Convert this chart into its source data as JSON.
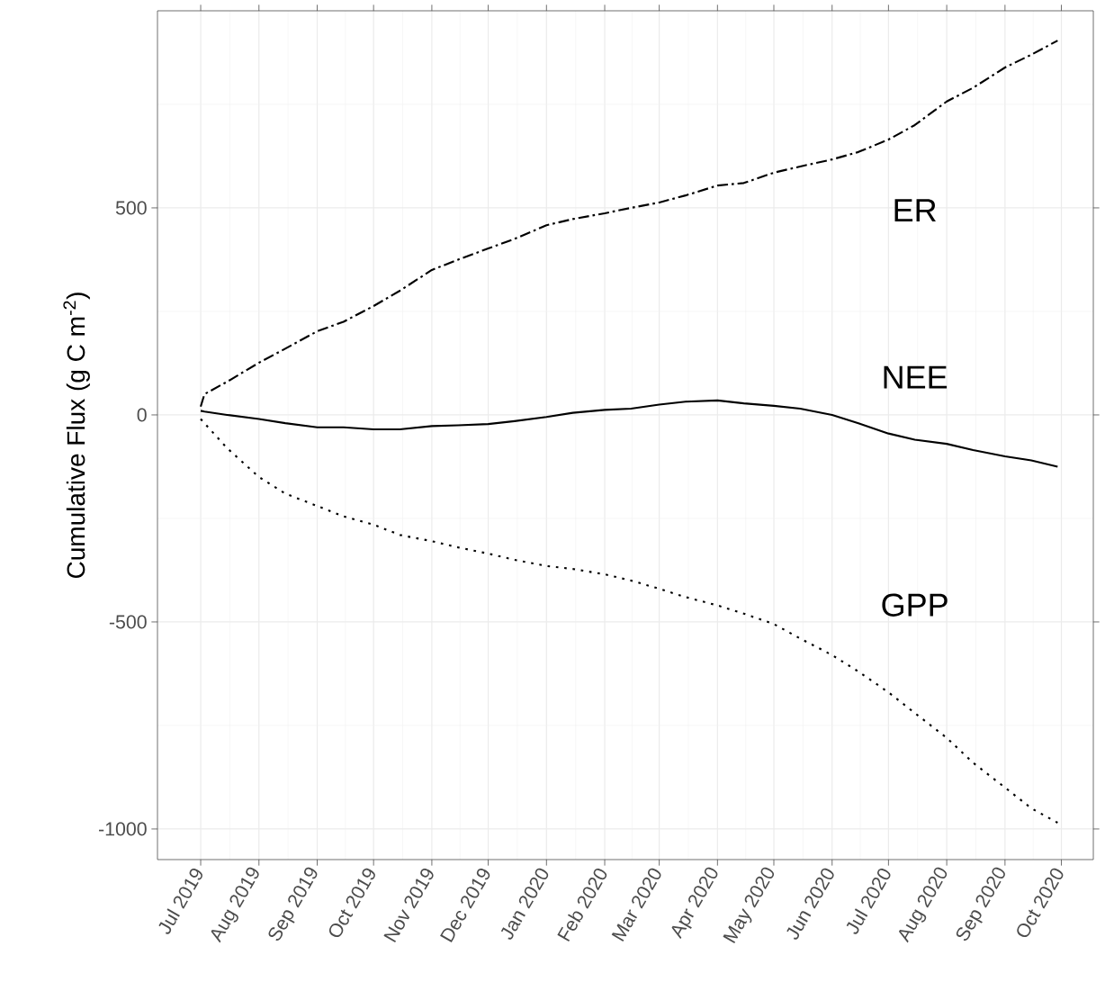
{
  "chart_data": {
    "type": "line",
    "ylabel": "Cumulative Flux (g C m$^{-2}$)",
    "x": [
      "2019-07-01",
      "2019-07-03",
      "2019-07-15",
      "2019-08-01",
      "2019-08-15",
      "2019-09-01",
      "2019-09-15",
      "2019-10-01",
      "2019-10-15",
      "2019-11-01",
      "2019-11-15",
      "2019-12-01",
      "2019-12-15",
      "2020-01-01",
      "2020-01-15",
      "2020-02-01",
      "2020-02-15",
      "2020-03-01",
      "2020-03-15",
      "2020-04-01",
      "2020-04-15",
      "2020-05-01",
      "2020-05-15",
      "2020-06-01",
      "2020-06-15",
      "2020-07-01",
      "2020-07-15",
      "2020-08-01",
      "2020-08-15",
      "2020-09-01",
      "2020-09-15",
      "2020-09-29"
    ],
    "series": [
      {
        "name": "ER",
        "color": "#000000",
        "line_style": "dashed",
        "values": [
          20,
          50,
          80,
          126,
          160,
          202,
          225,
          263,
          300,
          350,
          375,
          402,
          425,
          458,
          473,
          487,
          500,
          513,
          530,
          554,
          560,
          585,
          600,
          617,
          635,
          665,
          700,
          757,
          790,
          839,
          870,
          904
        ]
      },
      {
        "name": "NEE",
        "color": "#000000",
        "line_style": "solid",
        "values": [
          10,
          8,
          0,
          -10,
          -20,
          -30,
          -30,
          -35,
          -35,
          -27,
          -25,
          -22,
          -15,
          -5,
          5,
          12,
          15,
          25,
          32,
          35,
          28,
          22,
          15,
          0,
          -20,
          -45,
          -60,
          -70,
          -85,
          -100,
          -110,
          -125
        ]
      },
      {
        "name": "GPP",
        "color": "#000000",
        "line_style": "dotted",
        "values": [
          -10,
          -20,
          -80,
          -150,
          -190,
          -220,
          -245,
          -265,
          -290,
          -305,
          -320,
          -335,
          -350,
          -365,
          -372,
          -385,
          -400,
          -420,
          -440,
          -460,
          -480,
          -505,
          -540,
          -580,
          -620,
          -670,
          -720,
          -780,
          -840,
          -900,
          -950,
          -985
        ]
      }
    ],
    "xlim": [
      "2019-06-08",
      "2020-10-18"
    ],
    "xticks": [
      {
        "value": "2019-07-01",
        "label": "Jul 2019"
      },
      {
        "value": "2019-08-01",
        "label": "Aug 2019"
      },
      {
        "value": "2019-09-01",
        "label": "Sep 2019"
      },
      {
        "value": "2019-10-01",
        "label": "Oct 2019"
      },
      {
        "value": "2019-11-01",
        "label": "Nov 2019"
      },
      {
        "value": "2019-12-01",
        "label": "Dec 2019"
      },
      {
        "value": "2020-01-01",
        "label": "Jan 2020"
      },
      {
        "value": "2020-02-01",
        "label": "Feb 2020"
      },
      {
        "value": "2020-03-01",
        "label": "Mar 2020"
      },
      {
        "value": "2020-04-01",
        "label": "Apr 2020"
      },
      {
        "value": "2020-05-01",
        "label": "May 2020"
      },
      {
        "value": "2020-06-01",
        "label": "Jun 2020"
      },
      {
        "value": "2020-07-01",
        "label": "Jul 2020"
      },
      {
        "value": "2020-08-01",
        "label": "Aug 2020"
      },
      {
        "value": "2020-09-01",
        "label": "Sep 2020"
      },
      {
        "value": "2020-10-01",
        "label": "Oct 2020"
      }
    ],
    "ylim": [
      -1074,
      976
    ],
    "yticks": [
      -1000,
      -500,
      0,
      500
    ],
    "grid": true
  }
}
